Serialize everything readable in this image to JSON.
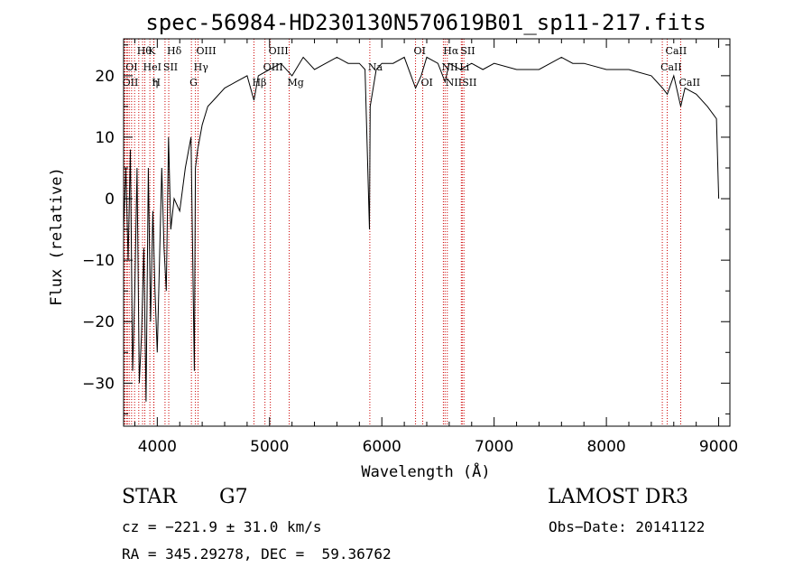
{
  "chart_data": {
    "type": "line",
    "title": "spec-56984-HD230130N570619B01_sp11-217.fits",
    "xlabel": "Wavelength (Å)",
    "ylabel": "Flux (relative)",
    "xlim": [
      3700,
      9100
    ],
    "ylim": [
      -37,
      26
    ],
    "xticks": [
      4000,
      5000,
      6000,
      7000,
      8000,
      9000
    ],
    "yticks": [
      -30,
      -20,
      -10,
      0,
      10,
      20
    ],
    "line_color": "#000000",
    "marker_color": "#cc0000",
    "grid": false,
    "series": [
      {
        "x": [
          3700,
          3720,
          3740,
          3760,
          3780,
          3800,
          3820,
          3840,
          3860,
          3880,
          3900,
          3920,
          3940,
          3960,
          3980,
          4000,
          4020,
          4040,
          4060,
          4080,
          4100,
          4120,
          4150,
          4200,
          4250,
          4300,
          4330,
          4340,
          4360,
          4400,
          4450,
          4500,
          4600,
          4700,
          4800,
          4861,
          4900,
          5000,
          5100,
          5200,
          5300,
          5400,
          5500,
          5600,
          5700,
          5800,
          5850,
          5890,
          5896,
          5950,
          6000,
          6100,
          6200,
          6300,
          6350,
          6400,
          6500,
          6563,
          6600,
          6700,
          6800,
          6900,
          7000,
          7200,
          7400,
          7500,
          7600,
          7700,
          7800,
          8000,
          8200,
          8400,
          8500,
          8542,
          8600,
          8662,
          8700,
          8800,
          8900,
          8980,
          9000
        ],
        "y": [
          -5,
          5,
          -10,
          8,
          -28,
          -15,
          5,
          -30,
          -22,
          -8,
          -33,
          5,
          -20,
          -2,
          -15,
          -25,
          -10,
          5,
          -8,
          -15,
          10,
          -5,
          0,
          -2,
          5,
          10,
          -28,
          5,
          8,
          12,
          15,
          16,
          18,
          19,
          20,
          16,
          20,
          21,
          22,
          20,
          23,
          21,
          22,
          23,
          22,
          22,
          21,
          -5,
          15,
          21,
          22,
          22,
          23,
          18,
          20,
          23,
          22,
          19,
          22,
          21,
          22,
          21,
          22,
          21,
          21,
          22,
          23,
          22,
          22,
          21,
          21,
          20,
          18,
          17,
          20,
          15,
          18,
          17,
          15,
          13,
          0
        ]
      }
    ],
    "line_markers": [
      {
        "x": 3705,
        "label": "OII",
        "row": 2
      },
      {
        "x": 3712,
        "label": "",
        "row": 0
      },
      {
        "x": 3727,
        "label": "",
        "row": 0
      },
      {
        "x": 3734,
        "label": "OI",
        "row": 1
      },
      {
        "x": 3750,
        "label": "",
        "row": 0
      },
      {
        "x": 3771,
        "label": "",
        "row": 0
      },
      {
        "x": 3798,
        "label": "",
        "row": 0
      },
      {
        "x": 3835,
        "label": "Hθ",
        "row": 0
      },
      {
        "x": 3869,
        "label": "",
        "row": 0
      },
      {
        "x": 3889,
        "label": "HeI",
        "row": 1
      },
      {
        "x": 3934,
        "label": "K",
        "row": 0
      },
      {
        "x": 3968,
        "label": "H",
        "row": 2
      },
      {
        "x": 3970,
        "label": "η",
        "row": 2
      },
      {
        "x": 4069,
        "label": "SII",
        "row": 1
      },
      {
        "x": 4102,
        "label": "Hδ",
        "row": 0
      },
      {
        "x": 4304,
        "label": "G",
        "row": 2
      },
      {
        "x": 4340,
        "label": "Hγ",
        "row": 1
      },
      {
        "x": 4363,
        "label": "OIII",
        "row": 0
      },
      {
        "x": 4861,
        "label": "Hβ",
        "row": 2
      },
      {
        "x": 4959,
        "label": "OIII",
        "row": 1
      },
      {
        "x": 5007,
        "label": "OIII",
        "row": 0
      },
      {
        "x": 5175,
        "label": "Mg",
        "row": 2
      },
      {
        "x": 5893,
        "label": "Na",
        "row": 1
      },
      {
        "x": 6300,
        "label": "OI",
        "row": 0
      },
      {
        "x": 6364,
        "label": "OI",
        "row": 2
      },
      {
        "x": 6548,
        "label": "NII",
        "row": 1
      },
      {
        "x": 6563,
        "label": "Hα",
        "row": 0
      },
      {
        "x": 6583,
        "label": "NII",
        "row": 2
      },
      {
        "x": 6708,
        "label": "Li",
        "row": 1
      },
      {
        "x": 6716,
        "label": "SII",
        "row": 0
      },
      {
        "x": 6731,
        "label": "SII",
        "row": 2
      },
      {
        "x": 8498,
        "label": "CaII",
        "row": 1
      },
      {
        "x": 8542,
        "label": "CaII",
        "row": 0
      },
      {
        "x": 8662,
        "label": "CaII",
        "row": 2
      }
    ]
  },
  "info": {
    "class": "STAR",
    "subclass": "G7",
    "survey": "LAMOST DR3",
    "cz": "cz = −221.9 ± 31.0 km/s",
    "obs_date": "Obs−Date: 20141122",
    "radec": "RA = 345.29278, DEC =  59.36762"
  }
}
